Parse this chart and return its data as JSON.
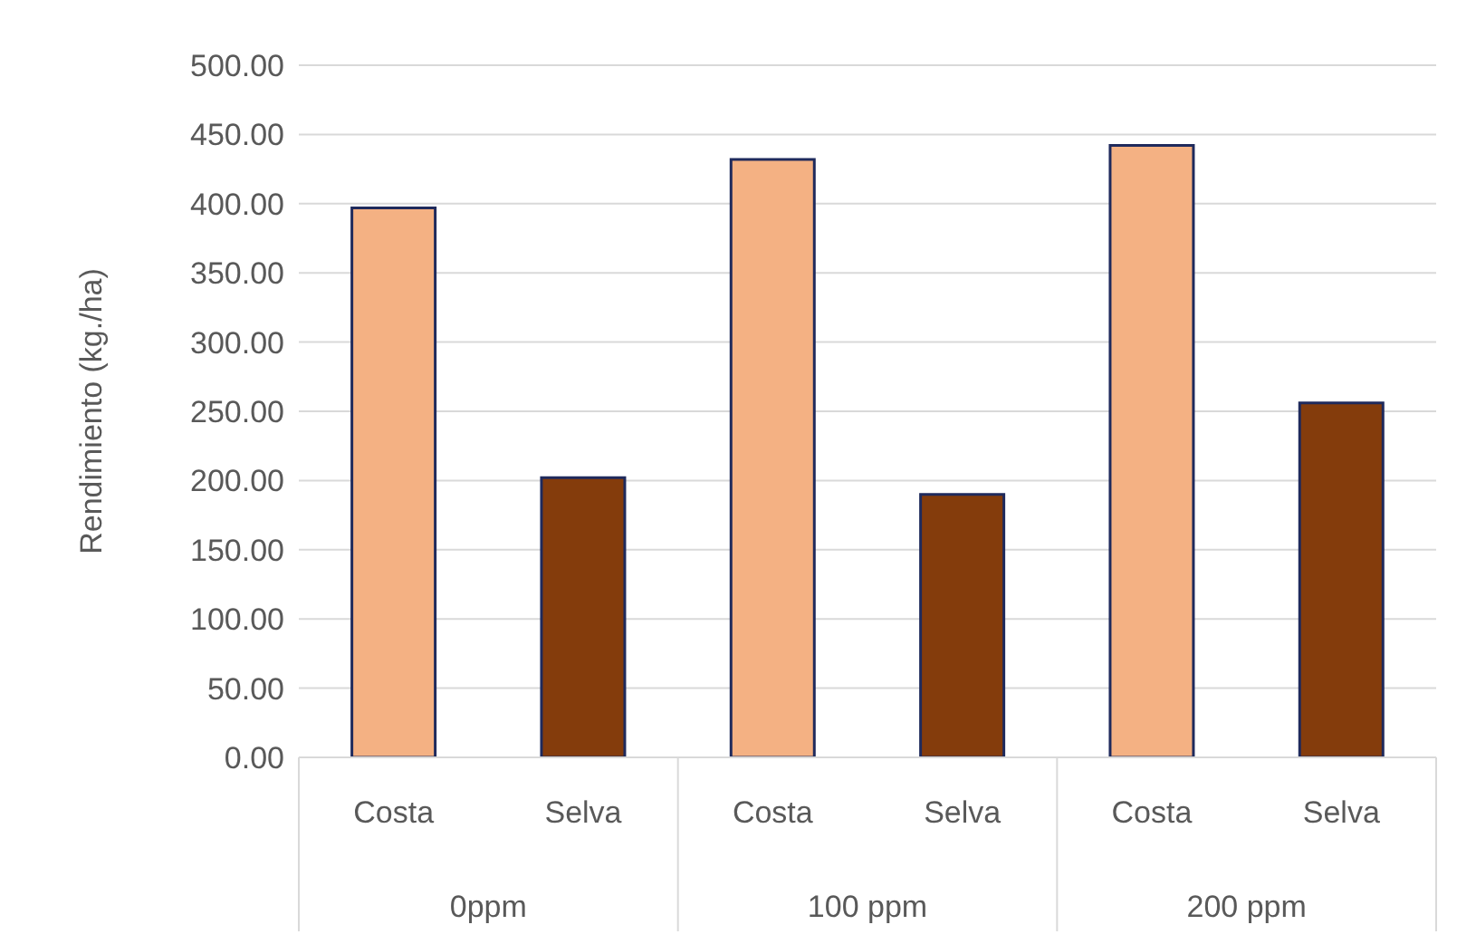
{
  "chart_data": {
    "type": "bar",
    "ylabel": "Rendimiento (kg./ha)",
    "categories": [
      "Costa",
      "Selva",
      "Costa",
      "Selva",
      "Costa",
      "Selva"
    ],
    "values": [
      397,
      202,
      432,
      190,
      442,
      256
    ],
    "colors": [
      "#f4b183",
      "#843c0c",
      "#f4b183",
      "#843c0c",
      "#f4b183",
      "#843c0c"
    ],
    "annotations": [
      "0ppm",
      "100 ppm",
      "200 ppm"
    ],
    "ylim": [
      0,
      500
    ],
    "yticks": [
      {
        "value": 0,
        "label": "0.00"
      },
      {
        "value": 50,
        "label": "50.00"
      },
      {
        "value": 100,
        "label": "100.00"
      },
      {
        "value": 150,
        "label": "150.00"
      },
      {
        "value": 200,
        "label": "200.00"
      },
      {
        "value": 250,
        "label": "250.00"
      },
      {
        "value": 300,
        "label": "300.00"
      },
      {
        "value": 350,
        "label": "350.00"
      },
      {
        "value": 400,
        "label": "400.00"
      },
      {
        "value": 450,
        "label": "450.00"
      },
      {
        "value": 500,
        "label": "500.00"
      }
    ],
    "grid": "y",
    "legend": false
  }
}
